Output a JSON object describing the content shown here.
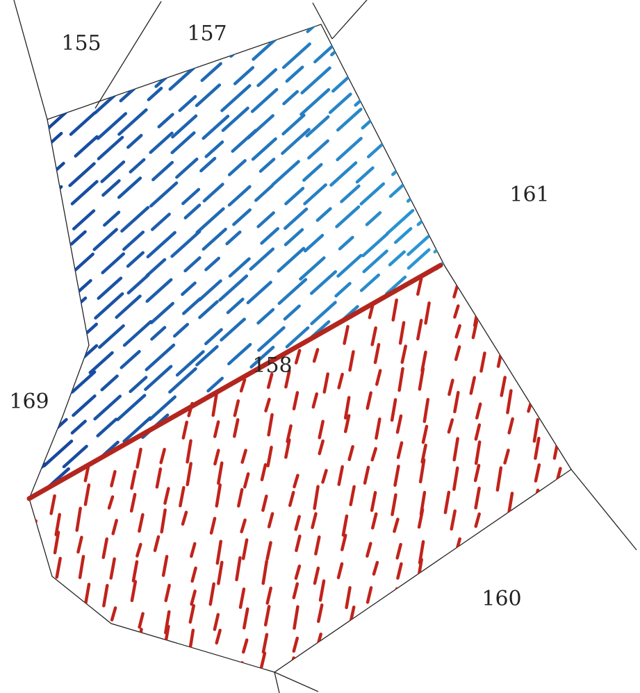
{
  "parcels": [
    "155",
    "157",
    "161",
    "158",
    "169",
    "160"
  ]
}
